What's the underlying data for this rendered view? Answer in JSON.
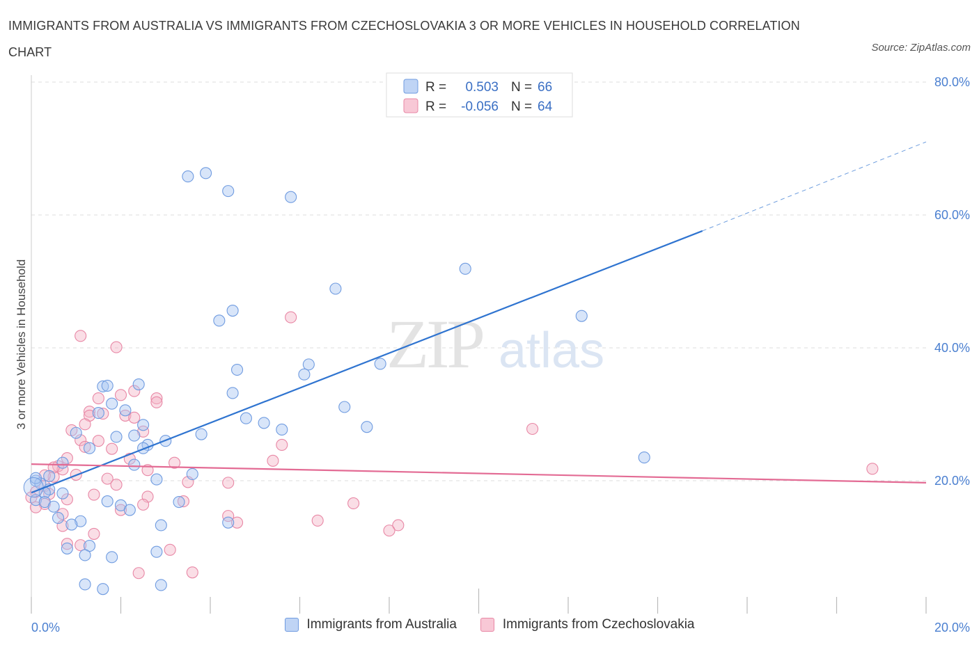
{
  "title": "IMMIGRANTS FROM AUSTRALIA VS IMMIGRANTS FROM CZECHOSLOVAKIA 3 OR MORE VEHICLES IN HOUSEHOLD CORRELATION CHART",
  "source": "Source: ZipAtlas.com",
  "watermark": {
    "zip": "ZIP",
    "atlas": "atlas"
  },
  "colors": {
    "blue_fill": "#a9c6f2",
    "blue_stroke": "#6f9be0",
    "blue_line": "#2f74d0",
    "pink_fill": "#f5b5c8",
    "pink_stroke": "#e887a5",
    "pink_line": "#e36b94",
    "tick": "#4a7fd0",
    "grid": "#dddddd"
  },
  "legend_top": {
    "rows": [
      {
        "r_label": "R =",
        "r_value": "0.503",
        "n_label": "N =",
        "n_value": "66"
      },
      {
        "r_label": "R =",
        "r_value": "-0.056",
        "n_label": "N =",
        "n_value": "64"
      }
    ]
  },
  "legend_bottom": [
    {
      "label": "Immigrants from Australia"
    },
    {
      "label": "Immigrants from Czechoslovakia"
    }
  ],
  "chart_data": {
    "type": "scatter",
    "title": "IMMIGRANTS FROM AUSTRALIA VS IMMIGRANTS FROM CZECHOSLOVAKIA 3 OR MORE VEHICLES IN HOUSEHOLD CORRELATION CHART",
    "xlabel": "",
    "ylabel": "3 or more Vehicles in Household",
    "xlim": [
      0,
      20
    ],
    "ylim": [
      0,
      80
    ],
    "x_tick_labels": [
      {
        "value": 0,
        "label": "0.0%"
      },
      {
        "value": 20,
        "label": "20.0%"
      }
    ],
    "y_tick_labels": [
      {
        "value": 20,
        "label": "20.0%"
      },
      {
        "value": 40,
        "label": "40.0%"
      },
      {
        "value": 60,
        "label": "60.0%"
      },
      {
        "value": 80,
        "label": "80.0%"
      }
    ],
    "grid": true,
    "legend_position": "top-center",
    "series": [
      {
        "name": "Immigrants from Australia",
        "color": "#a9c6f2",
        "R": 0.503,
        "N": 66,
        "trend": {
          "x0": 0,
          "y0": 18.2,
          "x1": 15,
          "y1": 57.6,
          "dashed_to_x": 20,
          "dashed_to_y": 71.0
        },
        "points": [
          [
            3.5,
            65.8
          ],
          [
            3.9,
            66.3
          ],
          [
            4.4,
            63.6
          ],
          [
            5.8,
            62.7
          ],
          [
            9.7,
            51.9
          ],
          [
            6.8,
            48.9
          ],
          [
            4.5,
            45.6
          ],
          [
            4.2,
            44.1
          ],
          [
            12.3,
            44.8
          ],
          [
            4.6,
            36.7
          ],
          [
            6.2,
            37.5
          ],
          [
            6.1,
            36.0
          ],
          [
            7.8,
            37.6
          ],
          [
            1.6,
            34.2
          ],
          [
            1.7,
            34.3
          ],
          [
            2.4,
            34.5
          ],
          [
            4.5,
            33.2
          ],
          [
            1.8,
            31.6
          ],
          [
            2.1,
            30.6
          ],
          [
            7.0,
            31.1
          ],
          [
            1.5,
            30.2
          ],
          [
            2.5,
            28.4
          ],
          [
            4.8,
            29.4
          ],
          [
            5.2,
            28.7
          ],
          [
            5.6,
            27.7
          ],
          [
            7.5,
            28.1
          ],
          [
            3.8,
            27.0
          ],
          [
            1.0,
            27.2
          ],
          [
            1.9,
            26.6
          ],
          [
            2.3,
            26.8
          ],
          [
            3.0,
            26.0
          ],
          [
            2.6,
            25.4
          ],
          [
            2.5,
            24.9
          ],
          [
            1.3,
            24.9
          ],
          [
            13.7,
            23.5
          ],
          [
            0.7,
            22.7
          ],
          [
            2.3,
            22.4
          ],
          [
            0.4,
            20.7
          ],
          [
            3.6,
            21.0
          ],
          [
            2.8,
            20.2
          ],
          [
            0.1,
            20.0
          ],
          [
            0.2,
            19.6
          ],
          [
            0.4,
            18.7
          ],
          [
            0.3,
            18.2
          ],
          [
            0.7,
            18.1
          ],
          [
            0.1,
            17.1
          ],
          [
            0.3,
            16.8
          ],
          [
            1.7,
            16.9
          ],
          [
            3.3,
            16.8
          ],
          [
            2.0,
            16.3
          ],
          [
            0.5,
            16.1
          ],
          [
            2.2,
            15.6
          ],
          [
            0.6,
            14.4
          ],
          [
            1.1,
            13.9
          ],
          [
            0.9,
            13.4
          ],
          [
            2.9,
            13.3
          ],
          [
            4.4,
            13.7
          ],
          [
            0.8,
            9.8
          ],
          [
            1.3,
            10.2
          ],
          [
            1.2,
            8.8
          ],
          [
            1.8,
            8.5
          ],
          [
            2.8,
            9.3
          ],
          [
            1.2,
            4.4
          ],
          [
            1.6,
            3.7
          ],
          [
            2.9,
            4.3
          ],
          [
            0.1,
            20.4
          ]
        ]
      },
      {
        "name": "Immigrants from Czechoslovakia",
        "color": "#f5b5c8",
        "R": -0.056,
        "N": 64,
        "trend": {
          "x0": 0,
          "y0": 22.5,
          "x1": 20,
          "y1": 19.7
        },
        "points": [
          [
            1.1,
            41.8
          ],
          [
            1.9,
            40.1
          ],
          [
            5.8,
            44.6
          ],
          [
            2.3,
            33.5
          ],
          [
            2.8,
            32.4
          ],
          [
            1.5,
            32.4
          ],
          [
            2.0,
            32.9
          ],
          [
            2.8,
            31.8
          ],
          [
            1.3,
            30.4
          ],
          [
            1.3,
            29.8
          ],
          [
            1.6,
            30.1
          ],
          [
            2.1,
            29.8
          ],
          [
            2.3,
            29.5
          ],
          [
            1.2,
            28.5
          ],
          [
            0.9,
            27.6
          ],
          [
            2.5,
            27.4
          ],
          [
            11.2,
            27.8
          ],
          [
            1.1,
            26.1
          ],
          [
            1.5,
            26.0
          ],
          [
            1.2,
            25.1
          ],
          [
            1.8,
            24.8
          ],
          [
            5.6,
            25.4
          ],
          [
            0.8,
            23.4
          ],
          [
            2.2,
            23.3
          ],
          [
            5.4,
            23.0
          ],
          [
            3.2,
            22.7
          ],
          [
            0.6,
            22.2
          ],
          [
            0.7,
            21.7
          ],
          [
            1.0,
            20.9
          ],
          [
            2.6,
            21.6
          ],
          [
            0.5,
            20.6
          ],
          [
            1.7,
            20.3
          ],
          [
            0.3,
            20.8
          ],
          [
            3.5,
            19.8
          ],
          [
            4.4,
            19.7
          ],
          [
            1.9,
            19.4
          ],
          [
            0.3,
            19.2
          ],
          [
            0.1,
            18.3
          ],
          [
            0.4,
            18.0
          ],
          [
            1.4,
            17.9
          ],
          [
            0.8,
            17.2
          ],
          [
            2.6,
            17.6
          ],
          [
            0.0,
            17.5
          ],
          [
            3.4,
            16.9
          ],
          [
            0.3,
            16.5
          ],
          [
            0.1,
            16.0
          ],
          [
            2.5,
            16.4
          ],
          [
            7.2,
            16.6
          ],
          [
            2.0,
            15.6
          ],
          [
            0.7,
            15.0
          ],
          [
            4.4,
            14.7
          ],
          [
            6.4,
            14.0
          ],
          [
            4.6,
            13.7
          ],
          [
            8.2,
            13.3
          ],
          [
            0.7,
            13.2
          ],
          [
            8.0,
            12.5
          ],
          [
            1.4,
            12.0
          ],
          [
            0.8,
            10.5
          ],
          [
            1.1,
            10.3
          ],
          [
            3.1,
            9.6
          ],
          [
            2.4,
            6.1
          ],
          [
            3.6,
            6.2
          ],
          [
            18.8,
            21.8
          ],
          [
            0.5,
            22.0
          ]
        ]
      }
    ]
  }
}
